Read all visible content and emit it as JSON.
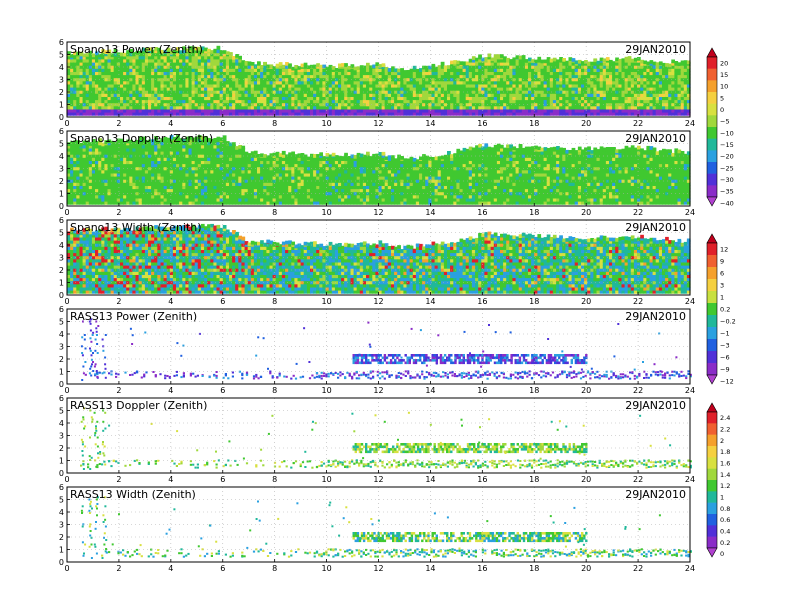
{
  "chart_data": [
    {
      "type": "heatmap",
      "title": "Spano13 Power (Zenith)",
      "date": "29JAN2010",
      "xlim": [
        0,
        24
      ],
      "xticks": [
        "0",
        "2",
        "4",
        "6",
        "8",
        "10",
        "12",
        "14",
        "16",
        "18",
        "20",
        "22",
        "24"
      ],
      "ylim": [
        0,
        6
      ],
      "yticks": [
        "0",
        "1",
        "2",
        "3",
        "4",
        "5",
        "6"
      ],
      "grid": true,
      "colorbar": "colorbar_a",
      "top_profile": [
        [
          0,
          5.2
        ],
        [
          2,
          5.3
        ],
        [
          4,
          5.5
        ],
        [
          6,
          5.5
        ],
        [
          7,
          4.3
        ],
        [
          10,
          4.1
        ],
        [
          12,
          4.2
        ],
        [
          13,
          3.8
        ],
        [
          14,
          4.1
        ],
        [
          15,
          4.4
        ],
        [
          16,
          4.9
        ],
        [
          20,
          4.6
        ],
        [
          22,
          4.7
        ],
        [
          24,
          4.3
        ]
      ],
      "value_range": [
        -40,
        20
      ]
    },
    {
      "type": "heatmap",
      "title": "Spano13 Doppler (Zenith)",
      "date": "29JAN2010",
      "xlim": [
        0,
        24
      ],
      "xticks": [
        "0",
        "2",
        "4",
        "6",
        "8",
        "10",
        "12",
        "14",
        "16",
        "18",
        "20",
        "22",
        "24"
      ],
      "ylim": [
        0,
        6
      ],
      "yticks": [
        "0",
        "1",
        "2",
        "3",
        "4",
        "5",
        "6"
      ],
      "grid": true,
      "colorbar": "colorbar_a",
      "top_profile": [
        [
          0,
          5.2
        ],
        [
          2,
          5.3
        ],
        [
          4,
          5.5
        ],
        [
          6,
          5.5
        ],
        [
          7,
          4.3
        ],
        [
          10,
          4.1
        ],
        [
          12,
          4.2
        ],
        [
          13,
          3.8
        ],
        [
          14,
          4.1
        ],
        [
          15,
          4.4
        ],
        [
          16,
          4.9
        ],
        [
          20,
          4.6
        ],
        [
          22,
          4.7
        ],
        [
          24,
          4.3
        ]
      ],
      "value_range": [
        -40,
        20
      ]
    },
    {
      "type": "heatmap",
      "title": "Spano13 Width (Zenith)",
      "date": "29JAN2010",
      "xlim": [
        0,
        24
      ],
      "xticks": [
        "0",
        "2",
        "4",
        "6",
        "8",
        "10",
        "12",
        "14",
        "16",
        "18",
        "20",
        "22",
        "24"
      ],
      "ylim": [
        0,
        6
      ],
      "yticks": [
        "0",
        "1",
        "2",
        "3",
        "4",
        "5",
        "6"
      ],
      "grid": true,
      "colorbar": "colorbar_b",
      "top_profile": [
        [
          0,
          5.2
        ],
        [
          2,
          5.3
        ],
        [
          4,
          5.5
        ],
        [
          6,
          5.5
        ],
        [
          7,
          4.3
        ],
        [
          10,
          4.1
        ],
        [
          12,
          4.2
        ],
        [
          13,
          3.8
        ],
        [
          14,
          4.1
        ],
        [
          15,
          4.4
        ],
        [
          16,
          4.9
        ],
        [
          20,
          4.6
        ],
        [
          22,
          4.7
        ],
        [
          24,
          4.3
        ]
      ],
      "value_range": [
        -12,
        12
      ]
    },
    {
      "type": "scatter",
      "title": "RASS13 Power (Zenith)",
      "date": "29JAN2010",
      "xlim": [
        0,
        24
      ],
      "xticks": [
        "0",
        "2",
        "4",
        "6",
        "8",
        "10",
        "12",
        "14",
        "16",
        "18",
        "20",
        "22",
        "24"
      ],
      "ylim": [
        0,
        6
      ],
      "yticks": [
        "0",
        "1",
        "2",
        "3",
        "4",
        "5",
        "6"
      ],
      "grid": true,
      "colorbar": "colorbar_b",
      "palette": "power",
      "band": {
        "x": [
          11,
          20
        ],
        "y": [
          1.8,
          2.6
        ]
      },
      "base_layer": {
        "y": [
          0.5,
          1.1
        ]
      }
    },
    {
      "type": "scatter",
      "title": "RASS13 Doppler (Zenith)",
      "date": "29JAN2010",
      "xlim": [
        0,
        24
      ],
      "xticks": [
        "0",
        "2",
        "4",
        "6",
        "8",
        "10",
        "12",
        "14",
        "16",
        "18",
        "20",
        "22",
        "24"
      ],
      "ylim": [
        0,
        6
      ],
      "yticks": [
        "0",
        "1",
        "2",
        "3",
        "4",
        "5",
        "6"
      ],
      "grid": true,
      "colorbar": "colorbar_c",
      "palette": "doppler",
      "band": {
        "x": [
          11,
          20
        ],
        "y": [
          1.8,
          2.6
        ]
      },
      "base_layer": {
        "y": [
          0.5,
          1.1
        ]
      }
    },
    {
      "type": "scatter",
      "title": "RASS13 Width (Zenith)",
      "date": "29JAN2010",
      "xlim": [
        0,
        24
      ],
      "xticks": [
        "0",
        "2",
        "4",
        "6",
        "8",
        "10",
        "12",
        "14",
        "16",
        "18",
        "20",
        "22",
        "24"
      ],
      "ylim": [
        0,
        6
      ],
      "yticks": [
        "0",
        "1",
        "2",
        "3",
        "4",
        "5",
        "6"
      ],
      "grid": true,
      "colorbar": "colorbar_c",
      "palette": "width",
      "band": {
        "x": [
          11,
          20
        ],
        "y": [
          1.8,
          2.6
        ]
      },
      "base_layer": {
        "y": [
          0.5,
          1.1
        ]
      }
    }
  ],
  "colorbars": {
    "colorbar_a": {
      "labels": [
        "20",
        "15",
        "10",
        "5",
        "0",
        "−5",
        "−10",
        "−15",
        "−20",
        "−25",
        "−30",
        "−35",
        "−40"
      ],
      "colors": [
        "#c0001c",
        "#e0202a",
        "#f06030",
        "#f5a02c",
        "#f5d040",
        "#d8e040",
        "#a0d83c",
        "#40c830",
        "#20b89a",
        "#2aa0e0",
        "#2060e0",
        "#5030d8",
        "#8a2cc8",
        "#b040d0"
      ]
    },
    "colorbar_b": {
      "labels": [
        "12",
        "9",
        "6",
        "3",
        "1",
        "0.2",
        "−0.2",
        "−1",
        "−3",
        "−6",
        "−9",
        "−12"
      ],
      "colors": [
        "#c0001c",
        "#e0202a",
        "#f06030",
        "#f5a02c",
        "#f5d040",
        "#c8e040",
        "#40c830",
        "#20b89a",
        "#2aa0e0",
        "#2060e0",
        "#5030d8",
        "#8a2cc8",
        "#b040d0"
      ]
    },
    "colorbar_c": {
      "labels": [
        "2.4",
        "2.2",
        "2",
        "1.8",
        "1.6",
        "1.4",
        "1.2",
        "1",
        "0.8",
        "0.6",
        "0.4",
        "0.2",
        "0"
      ],
      "colors": [
        "#c0001c",
        "#e0202a",
        "#f06030",
        "#f5a02c",
        "#f5d040",
        "#d8e040",
        "#a0d83c",
        "#40c830",
        "#20b89a",
        "#2aa0e0",
        "#2060e0",
        "#5030d8",
        "#8a2cc8",
        "#b040d0"
      ]
    }
  }
}
